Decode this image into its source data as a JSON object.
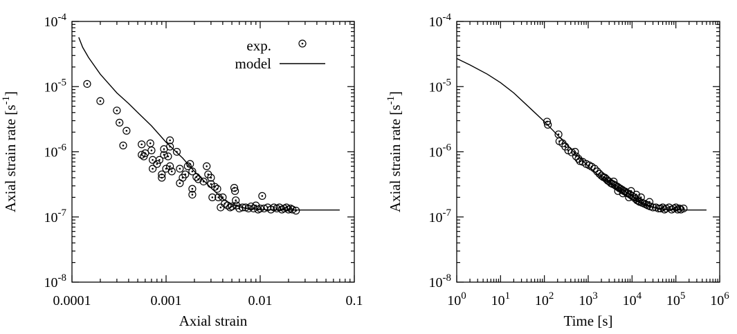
{
  "chart_data": [
    {
      "type": "scatter",
      "xlabel": "Axial strain",
      "ylabel": "Axial strain rate [s",
      "ylabel_sup": "-1",
      "ylabel_end": "]",
      "xscale": "log",
      "yscale": "log",
      "xlim": [
        0.0001,
        0.1
      ],
      "ylim": [
        1e-08,
        0.0001
      ],
      "xticks": [
        {
          "value": 0.0001,
          "label": "0.0001"
        },
        {
          "value": 0.001,
          "label": "0.001"
        },
        {
          "value": 0.01,
          "label": "0.01"
        },
        {
          "value": 0.1,
          "label": "0.1"
        }
      ],
      "yticks": [
        {
          "value": 1e-08,
          "base": "10",
          "exp": "-8"
        },
        {
          "value": 1e-07,
          "base": "10",
          "exp": "-7"
        },
        {
          "value": 1e-06,
          "base": "10",
          "exp": "-6"
        },
        {
          "value": 1e-05,
          "base": "10",
          "exp": "-5"
        },
        {
          "value": 0.0001,
          "base": "10",
          "exp": "-4"
        }
      ],
      "grid": false,
      "legend": {
        "placement": "top-right",
        "entries": [
          {
            "label": "exp.",
            "marker": "circle-dot"
          },
          {
            "label": "model",
            "marker": "line"
          }
        ]
      },
      "series": [
        {
          "name": "exp.",
          "style": "circle-dot",
          "points": [
            [
              0.000145,
              1.1e-05
            ],
            [
              0.0002,
              6e-06
            ],
            [
              0.0003,
              4.3e-06
            ],
            [
              0.00032,
              2.8e-06
            ],
            [
              0.00038,
              2.1e-06
            ],
            [
              0.00035,
              1.25e-06
            ],
            [
              0.00055,
              1.3e-06
            ],
            [
              0.00055,
              9e-07
            ],
            [
              0.00058,
              8.5e-07
            ],
            [
              0.0006,
              9.5e-07
            ],
            [
              0.00068,
              1.35e-06
            ],
            [
              0.0007,
              1.05e-06
            ],
            [
              0.00072,
              7.5e-07
            ],
            [
              0.00072,
              5.5e-07
            ],
            [
              0.0008,
              6.5e-07
            ],
            [
              0.00085,
              7.5e-07
            ],
            [
              0.0009,
              4.5e-07
            ],
            [
              0.0009,
              4e-07
            ],
            [
              0.00095,
              1.1e-06
            ],
            [
              0.00095,
              9e-07
            ],
            [
              0.001,
              5.5e-07
            ],
            [
              0.00105,
              8.5e-07
            ],
            [
              0.0011,
              1.5e-06
            ],
            [
              0.0011,
              1.2e-06
            ],
            [
              0.0011,
              6e-07
            ],
            [
              0.00115,
              5e-07
            ],
            [
              0.0013,
              1e-06
            ],
            [
              0.0014,
              5.5e-07
            ],
            [
              0.0014,
              3.3e-07
            ],
            [
              0.0015,
              4e-07
            ],
            [
              0.0016,
              4.5e-07
            ],
            [
              0.0017,
              6e-07
            ],
            [
              0.0018,
              6.5e-07
            ],
            [
              0.0019,
              5e-07
            ],
            [
              0.0019,
              2.7e-07
            ],
            [
              0.0019,
              2.2e-07
            ],
            [
              0.0021,
              4.1e-07
            ],
            [
              0.0022,
              3.8e-07
            ],
            [
              0.0025,
              3.5e-07
            ],
            [
              0.0027,
              6e-07
            ],
            [
              0.0028,
              4.5e-07
            ],
            [
              0.003,
              4e-07
            ],
            [
              0.003,
              3.2e-07
            ],
            [
              0.0031,
              2e-07
            ],
            [
              0.0033,
              2.9e-07
            ],
            [
              0.0035,
              2.7e-07
            ],
            [
              0.0036,
              2e-07
            ],
            [
              0.0038,
              1.4e-07
            ],
            [
              0.004,
              2e-07
            ],
            [
              0.0042,
              1.6e-07
            ],
            [
              0.0045,
              1.5e-07
            ],
            [
              0.0048,
              1.4e-07
            ],
            [
              0.005,
              1.45e-07
            ],
            [
              0.0053,
              2.8e-07
            ],
            [
              0.0054,
              2.5e-07
            ],
            [
              0.0055,
              1.8e-07
            ],
            [
              0.0056,
              1.5e-07
            ],
            [
              0.006,
              1.35e-07
            ],
            [
              0.0065,
              1.4e-07
            ],
            [
              0.007,
              1.4e-07
            ],
            [
              0.0075,
              1.35e-07
            ],
            [
              0.008,
              1.45e-07
            ],
            [
              0.0085,
              1.35e-07
            ],
            [
              0.009,
              1.5e-07
            ],
            [
              0.0095,
              1.3e-07
            ],
            [
              0.01,
              1.35e-07
            ],
            [
              0.0105,
              2.1e-07
            ],
            [
              0.011,
              1.35e-07
            ],
            [
              0.012,
              1.4e-07
            ],
            [
              0.013,
              1.3e-07
            ],
            [
              0.014,
              1.4e-07
            ],
            [
              0.015,
              1.35e-07
            ],
            [
              0.016,
              1.4e-07
            ],
            [
              0.017,
              1.3e-07
            ],
            [
              0.018,
              1.35e-07
            ],
            [
              0.019,
              1.4e-07
            ],
            [
              0.02,
              1.3e-07
            ],
            [
              0.021,
              1.35e-07
            ],
            [
              0.022,
              1.3e-07
            ],
            [
              0.024,
              1.25e-07
            ]
          ]
        },
        {
          "name": "model",
          "style": "line",
          "points": [
            [
              0.000118,
              5.7e-05
            ],
            [
              0.00013,
              4e-05
            ],
            [
              0.00015,
              2.8e-05
            ],
            [
              0.0002,
              1.55e-05
            ],
            [
              0.0003,
              8e-06
            ],
            [
              0.0004,
              5.5e-06
            ],
            [
              0.0005,
              4e-06
            ],
            [
              0.0007,
              2.5e-06
            ],
            [
              0.001,
              1.4e-06
            ],
            [
              0.0015,
              8e-07
            ],
            [
              0.002,
              5e-07
            ],
            [
              0.003,
              2.8e-07
            ],
            [
              0.004,
              1.9e-07
            ],
            [
              0.005,
              1.55e-07
            ],
            [
              0.007,
              1.35e-07
            ],
            [
              0.01,
              1.3e-07
            ],
            [
              0.02,
              1.28e-07
            ],
            [
              0.07,
              1.28e-07
            ]
          ]
        }
      ]
    },
    {
      "type": "scatter",
      "xlabel": "Time [s]",
      "ylabel": "Axial strain rate [s",
      "ylabel_sup": "-1",
      "ylabel_end": "]",
      "xscale": "log",
      "yscale": "log",
      "xlim": [
        1,
        1000000
      ],
      "ylim": [
        1e-08,
        0.0001
      ],
      "xticks": [
        {
          "value": 1,
          "base": "10",
          "exp": "0"
        },
        {
          "value": 10,
          "base": "10",
          "exp": "1"
        },
        {
          "value": 100,
          "base": "10",
          "exp": "2"
        },
        {
          "value": 1000,
          "base": "10",
          "exp": "3"
        },
        {
          "value": 10000,
          "base": "10",
          "exp": "4"
        },
        {
          "value": 100000,
          "base": "10",
          "exp": "5"
        },
        {
          "value": 1000000,
          "base": "10",
          "exp": "6"
        }
      ],
      "yticks": [
        {
          "value": 1e-08,
          "base": "10",
          "exp": "-8"
        },
        {
          "value": 1e-07,
          "base": "10",
          "exp": "-7"
        },
        {
          "value": 1e-06,
          "base": "10",
          "exp": "-6"
        },
        {
          "value": 1e-05,
          "base": "10",
          "exp": "-5"
        },
        {
          "value": 0.0001,
          "base": "10",
          "exp": "-4"
        }
      ],
      "grid": false,
      "series": [
        {
          "name": "exp.",
          "style": "circle-dot",
          "points": [
            [
              115,
              2.9e-06
            ],
            [
              120,
              2.6e-06
            ],
            [
              210,
              1.85e-06
            ],
            [
              220,
              1.45e-06
            ],
            [
              260,
              1.35e-06
            ],
            [
              300,
              1.2e-06
            ],
            [
              350,
              1.05e-06
            ],
            [
              420,
              9.8e-07
            ],
            [
              500,
              1e-06
            ],
            [
              530,
              8.5e-07
            ],
            [
              600,
              7.8e-07
            ],
            [
              650,
              7.2e-07
            ],
            [
              750,
              7e-07
            ],
            [
              900,
              6.5e-07
            ],
            [
              1050,
              6.2e-07
            ],
            [
              1200,
              5.9e-07
            ],
            [
              1400,
              5.5e-07
            ],
            [
              1600,
              5e-07
            ],
            [
              1800,
              4.6e-07
            ],
            [
              2000,
              4.3e-07
            ],
            [
              2200,
              4.1e-07
            ],
            [
              2400,
              4e-07
            ],
            [
              2600,
              3.8e-07
            ],
            [
              2800,
              3.6e-07
            ],
            [
              3000,
              3.5e-07
            ],
            [
              3300,
              3.3e-07
            ],
            [
              3600,
              3.2e-07
            ],
            [
              4000,
              3.1e-07
            ],
            [
              4300,
              3e-07
            ],
            [
              4700,
              2.9e-07
            ],
            [
              5000,
              2.8e-07
            ],
            [
              5500,
              2.7e-07
            ],
            [
              6000,
              2.6e-07
            ],
            [
              6500,
              2.5e-07
            ],
            [
              7000,
              2.45e-07
            ],
            [
              7500,
              2.35e-07
            ],
            [
              8000,
              2.3e-07
            ],
            [
              9000,
              2.2e-07
            ],
            [
              10000,
              2.1e-07
            ],
            [
              11000,
              2e-07
            ],
            [
              12000,
              1.9e-07
            ],
            [
              13000,
              1.8e-07
            ],
            [
              14000,
              1.75e-07
            ],
            [
              15000,
              1.7e-07
            ],
            [
              17000,
              1.65e-07
            ],
            [
              19000,
              1.6e-07
            ],
            [
              21000,
              1.55e-07
            ],
            [
              23000,
              1.5e-07
            ],
            [
              26000,
              1.45e-07
            ],
            [
              30000,
              1.4e-07
            ],
            [
              35000,
              1.4e-07
            ],
            [
              40000,
              1.35e-07
            ],
            [
              45000,
              1.35e-07
            ],
            [
              50000,
              1.4e-07
            ],
            [
              55000,
              1.3e-07
            ],
            [
              60000,
              1.35e-07
            ],
            [
              70000,
              1.4e-07
            ],
            [
              80000,
              1.3e-07
            ],
            [
              90000,
              1.35e-07
            ],
            [
              100000,
              1.4e-07
            ],
            [
              110000,
              1.3e-07
            ],
            [
              120000,
              1.35e-07
            ],
            [
              130000,
              1.3e-07
            ],
            [
              150000,
              1.35e-07
            ],
            [
              3800,
              3.5e-07
            ],
            [
              6200,
              2.3e-07
            ],
            [
              9500,
              2.5e-07
            ],
            [
              16000,
              2e-07
            ],
            [
              25000,
              1.7e-07
            ],
            [
              4800,
              2.5e-07
            ],
            [
              8500,
              2e-07
            ],
            [
              12500,
              2.2e-07
            ]
          ]
        },
        {
          "name": "model",
          "style": "line",
          "points": [
            [
              1,
              2.7e-05
            ],
            [
              2,
              2.15e-05
            ],
            [
              5,
              1.55e-05
            ],
            [
              10,
              1.15e-05
            ],
            [
              20,
              8e-06
            ],
            [
              50,
              4.5e-06
            ],
            [
              100,
              2.9e-06
            ],
            [
              200,
              1.8e-06
            ],
            [
              500,
              9.5e-07
            ],
            [
              1000,
              6e-07
            ],
            [
              2000,
              4e-07
            ],
            [
              5000,
              2.6e-07
            ],
            [
              10000,
              1.9e-07
            ],
            [
              20000,
              1.5e-07
            ],
            [
              50000,
              1.32e-07
            ],
            [
              100000,
              1.28e-07
            ],
            [
              500000,
              1.28e-07
            ]
          ]
        }
      ]
    }
  ]
}
